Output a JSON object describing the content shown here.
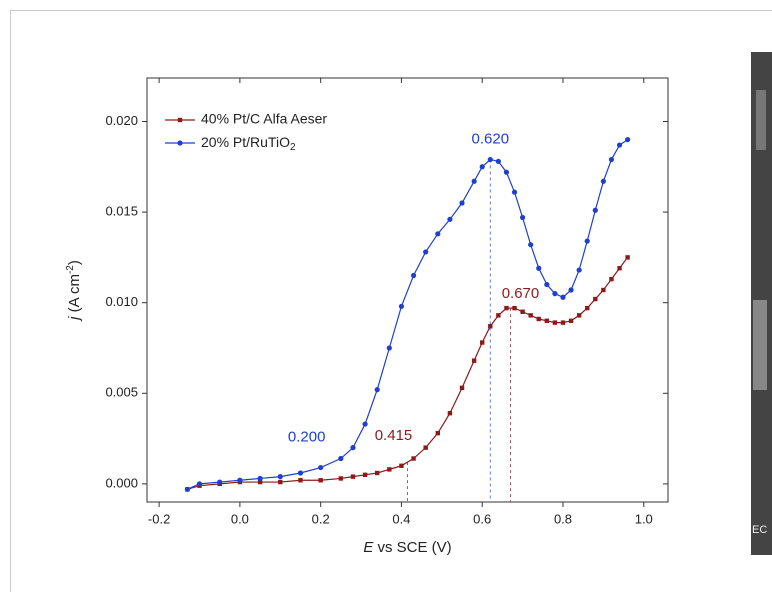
{
  "chart_data": {
    "type": "line",
    "xlabel": "E vs SCE (V)",
    "ylabel": "j (A cm-2)",
    "x": [
      -0.13,
      -0.1,
      -0.05,
      0,
      0.05,
      0.1,
      0.15,
      0.2,
      0.25,
      0.28,
      0.31,
      0.34,
      0.37,
      0.4,
      0.43,
      0.46,
      0.49,
      0.52,
      0.55,
      0.58,
      0.6,
      0.62,
      0.64,
      0.66,
      0.68,
      0.7,
      0.72,
      0.74,
      0.76,
      0.78,
      0.8,
      0.82,
      0.84,
      0.86,
      0.88,
      0.9,
      0.92,
      0.94,
      0.96
    ],
    "series": [
      {
        "name": "40% Pt/C Alfa Aeser",
        "color": "#8b1a1a",
        "marker": "square",
        "values": [
          -0.0003,
          -0.0001,
          0.0,
          0.0001,
          0.0001,
          0.0001,
          0.0002,
          0.0002,
          0.0003,
          0.0004,
          0.0005,
          0.0006,
          0.0008,
          0.001,
          0.0014,
          0.002,
          0.0028,
          0.0039,
          0.0053,
          0.0068,
          0.0078,
          0.0087,
          0.0093,
          0.0097,
          0.0097,
          0.0095,
          0.0093,
          0.0091,
          0.009,
          0.0089,
          0.0089,
          0.009,
          0.0093,
          0.0097,
          0.0102,
          0.0107,
          0.0113,
          0.0119,
          0.0125
        ]
      },
      {
        "name": "20% Pt/RuTiO2",
        "color": "#1f3fd0",
        "marker": "circle",
        "values": [
          -0.0003,
          0.0,
          0.0001,
          0.0002,
          0.0003,
          0.0004,
          0.0006,
          0.0009,
          0.0014,
          0.002,
          0.0033,
          0.0052,
          0.0075,
          0.0098,
          0.0115,
          0.0128,
          0.0138,
          0.0146,
          0.0155,
          0.0167,
          0.0175,
          0.0179,
          0.0178,
          0.0172,
          0.0161,
          0.0147,
          0.0132,
          0.0119,
          0.011,
          0.0105,
          0.0103,
          0.0107,
          0.0118,
          0.0134,
          0.0151,
          0.0167,
          0.0179,
          0.0187,
          0.019
        ]
      }
    ],
    "annotations": [
      {
        "text": "0.620",
        "x": 0.62,
        "series": 1,
        "line": true
      },
      {
        "text": "0.670",
        "x": 0.67,
        "series": 0,
        "line": true
      },
      {
        "text": "0.200",
        "x": 0.2,
        "series": 1,
        "line": false
      },
      {
        "text": "0.415",
        "x": 0.415,
        "series": 0,
        "line": true
      }
    ],
    "xlim": [
      -0.23,
      1.06
    ],
    "xticks": [
      -0.2,
      {
        "value": 0,
        "label": "0.0"
      },
      0.2,
      0.4,
      0.6,
      0.8,
      {
        "value": 1,
        "label": "1.0"
      }
    ],
    "ylim": [
      -0.001,
      0.0224
    ],
    "yticks": [
      {
        "value": 0,
        "label": "0.000"
      },
      {
        "value": 0.005,
        "label": "0.005"
      },
      {
        "value": 0.01,
        "label": "0.010"
      },
      {
        "value": 0.015,
        "label": "0.015"
      },
      {
        "value": 0.02,
        "label": "0.020"
      }
    ],
    "legend": "upper left"
  },
  "image_label": "EC"
}
